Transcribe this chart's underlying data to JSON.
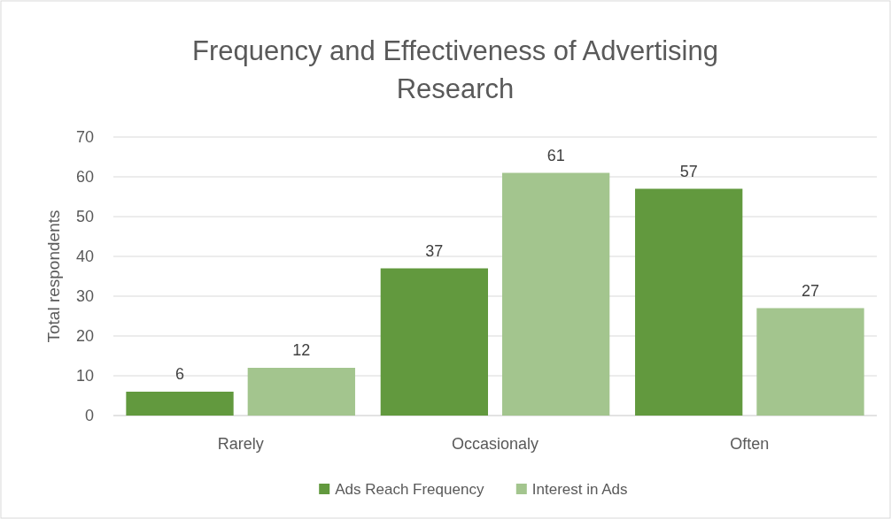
{
  "chart_data": {
    "type": "bar",
    "title": "Frequency and Effectiveness of Advertising Research",
    "ylabel": "Total respondents",
    "categories": [
      "Rarely",
      "Occasionaly",
      "Often"
    ],
    "series": [
      {
        "name": "Ads Reach Frequency",
        "color": "#62993e",
        "values": [
          6,
          37,
          57
        ]
      },
      {
        "name": "Interest in Ads",
        "color": "#a3c58e",
        "values": [
          12,
          61,
          27
        ]
      }
    ],
    "ylim": [
      0,
      70
    ],
    "yticks": [
      0,
      10,
      20,
      30,
      40,
      50,
      60,
      70
    ],
    "grid": "y",
    "legend": "bottom",
    "data_labels": true
  }
}
